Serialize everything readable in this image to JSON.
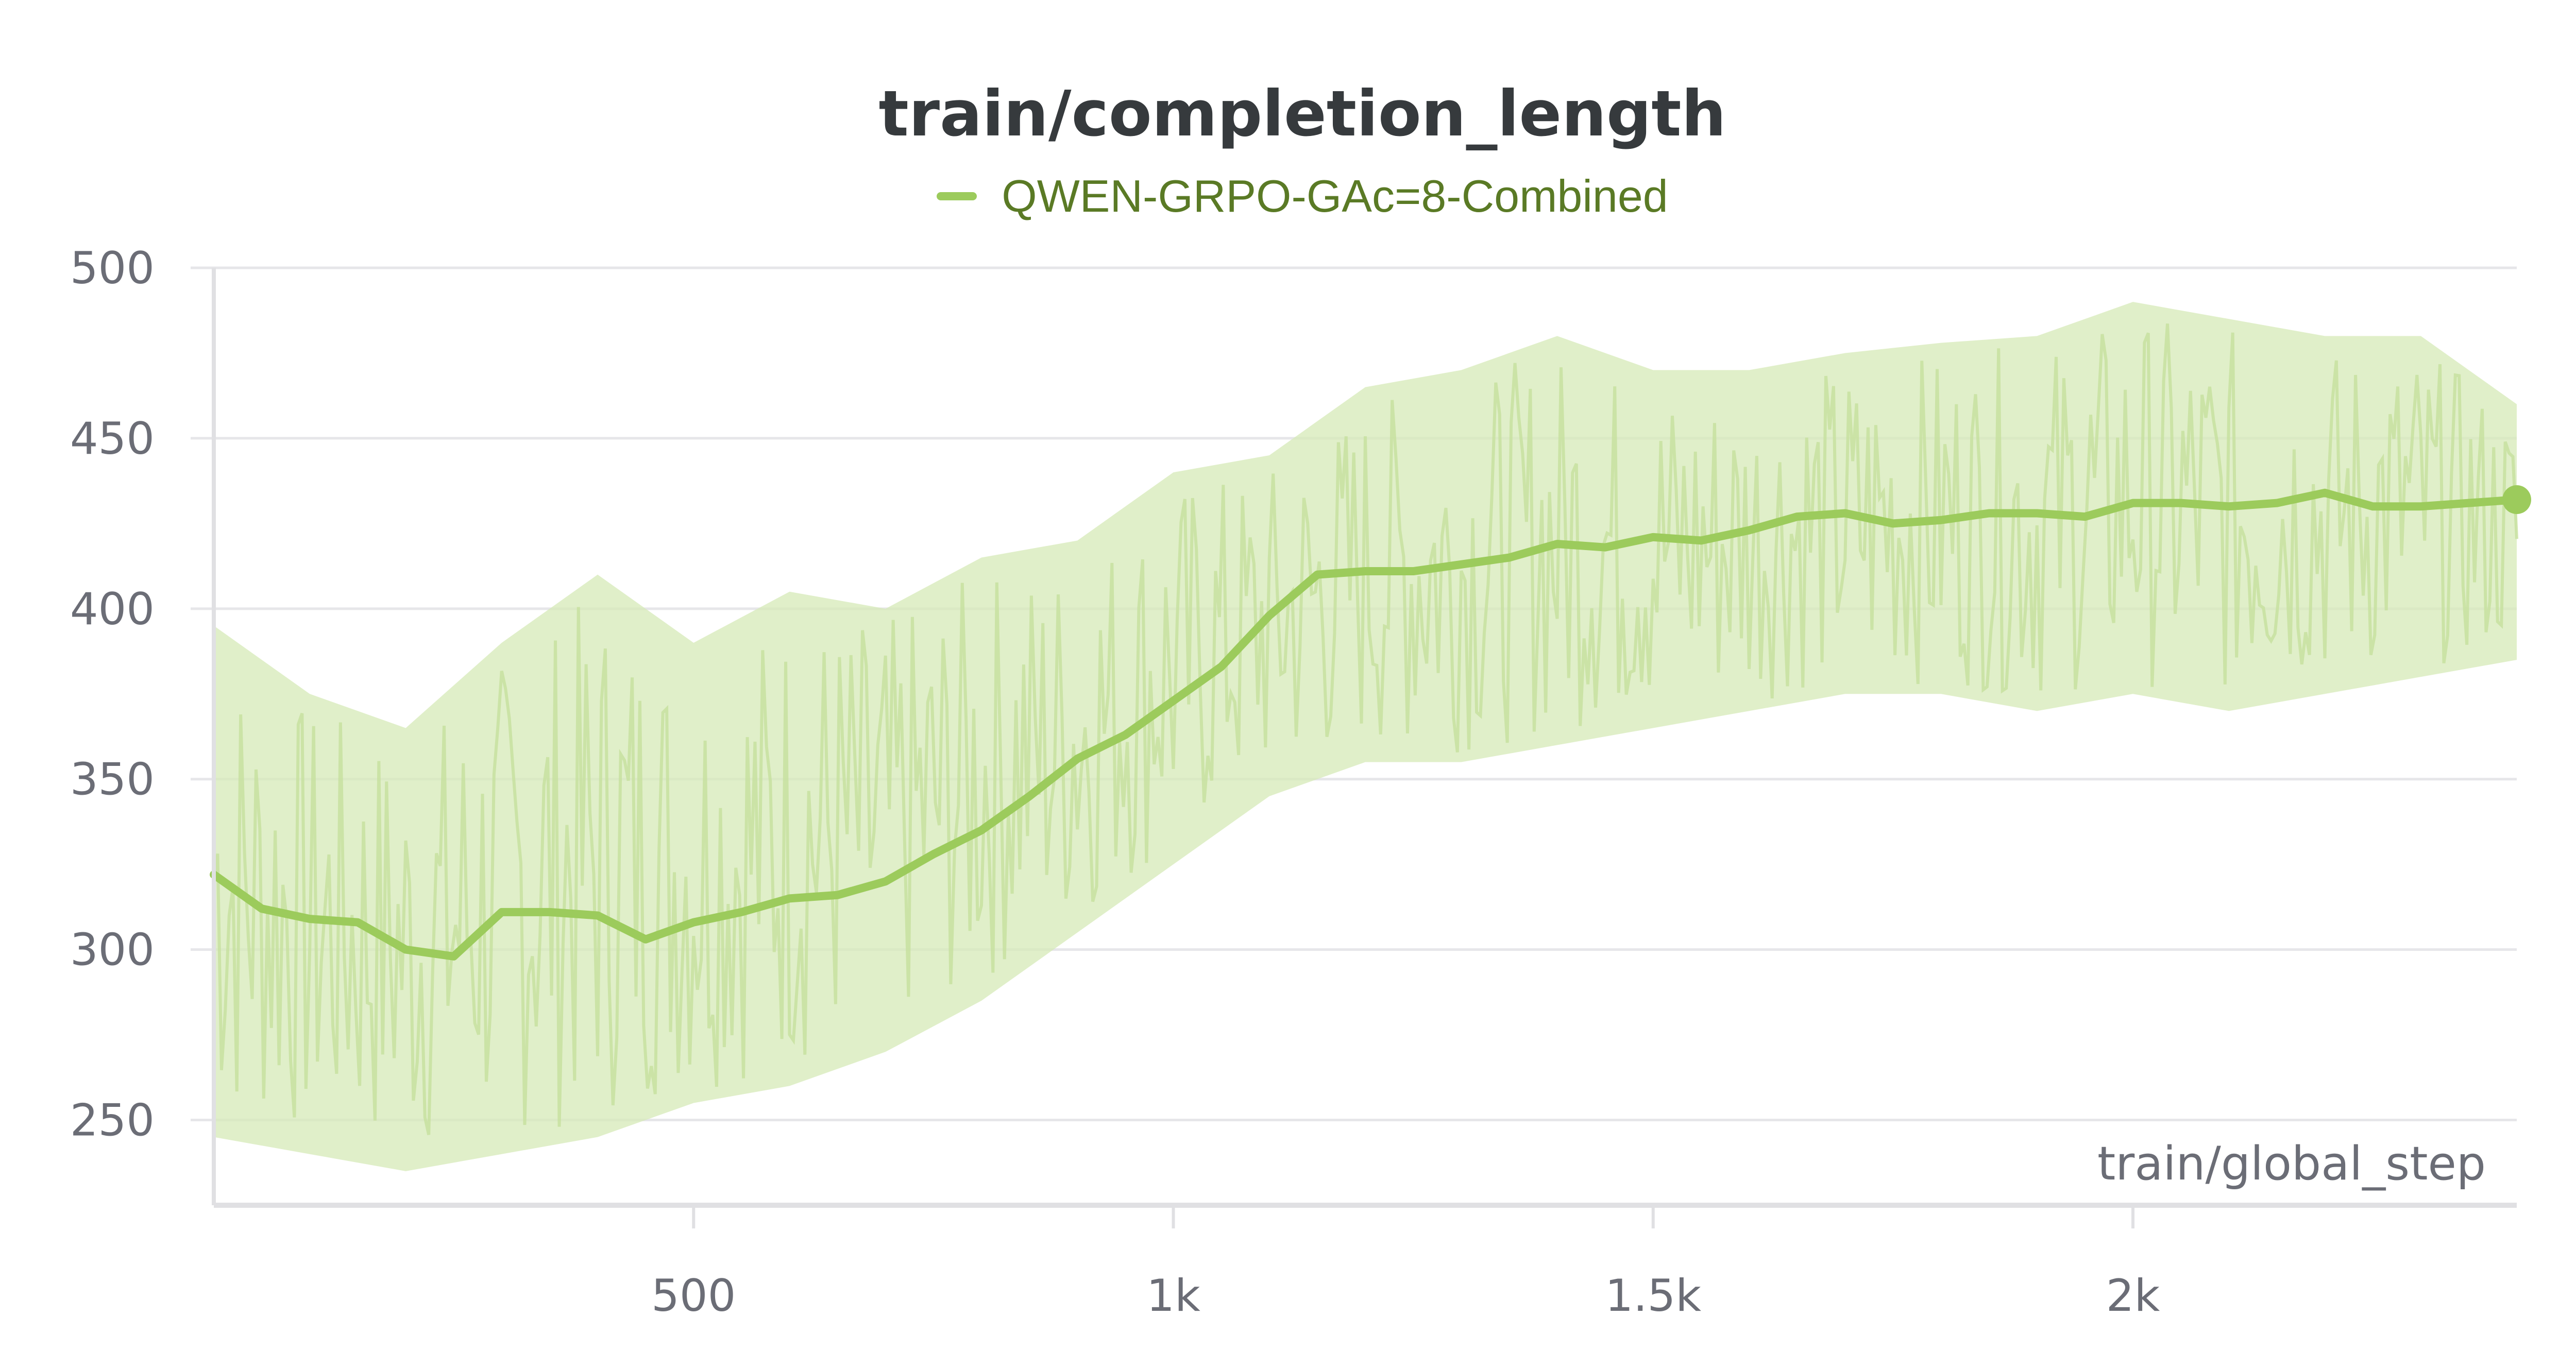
{
  "chart_data": {
    "type": "line",
    "title": "train/completion_length",
    "xlabel": "train/global_step",
    "ylabel": "",
    "xlim": [
      0,
      2400
    ],
    "ylim": [
      225,
      500
    ],
    "x_ticks": [
      500,
      1000,
      1500,
      2000
    ],
    "x_tick_labels": [
      "500",
      "1k",
      "1.5k",
      "2k"
    ],
    "y_ticks": [
      250,
      300,
      350,
      400,
      450,
      500
    ],
    "y_tick_labels": [
      "250",
      "300",
      "350",
      "400",
      "450",
      "500"
    ],
    "grid": true,
    "legend_position": "top-center",
    "series": [
      {
        "name": "QWEN-GRPO-GAc=8-Combined",
        "color": "#9ccb5c",
        "legend_text_color": "#5a7a25",
        "raw_band_color": "#d5e9b7",
        "smoothed": {
          "x": [
            0,
            50,
            100,
            150,
            200,
            250,
            300,
            350,
            400,
            450,
            500,
            550,
            600,
            650,
            700,
            750,
            800,
            850,
            900,
            950,
            1000,
            1050,
            1100,
            1150,
            1200,
            1250,
            1300,
            1350,
            1400,
            1450,
            1500,
            1550,
            1600,
            1650,
            1700,
            1750,
            1800,
            1850,
            1900,
            1950,
            2000,
            2050,
            2100,
            2150,
            2200,
            2250,
            2300,
            2350,
            2400
          ],
          "y": [
            322,
            312,
            309,
            308,
            300,
            298,
            311,
            311,
            310,
            303,
            308,
            311,
            315,
            316,
            320,
            328,
            335,
            345,
            356,
            363,
            373,
            383,
            398,
            410,
            411,
            411,
            413,
            415,
            419,
            418,
            421,
            420,
            423,
            427,
            428,
            425,
            426,
            428,
            428,
            427,
            431,
            431,
            430,
            431,
            434,
            430,
            430,
            431,
            432
          ]
        },
        "raw_band": {
          "x": [
            0,
            100,
            200,
            300,
            400,
            500,
            600,
            700,
            800,
            900,
            1000,
            1100,
            1200,
            1300,
            1400,
            1500,
            1600,
            1700,
            1800,
            1900,
            2000,
            2100,
            2200,
            2300,
            2400
          ],
          "high": [
            395,
            375,
            365,
            390,
            410,
            390,
            405,
            400,
            415,
            420,
            440,
            445,
            465,
            470,
            480,
            470,
            470,
            475,
            478,
            480,
            490,
            485,
            480,
            480,
            460
          ],
          "low": [
            245,
            240,
            235,
            240,
            245,
            255,
            260,
            270,
            285,
            305,
            325,
            345,
            355,
            355,
            360,
            365,
            370,
            375,
            375,
            370,
            375,
            370,
            375,
            380,
            385
          ]
        }
      }
    ]
  }
}
